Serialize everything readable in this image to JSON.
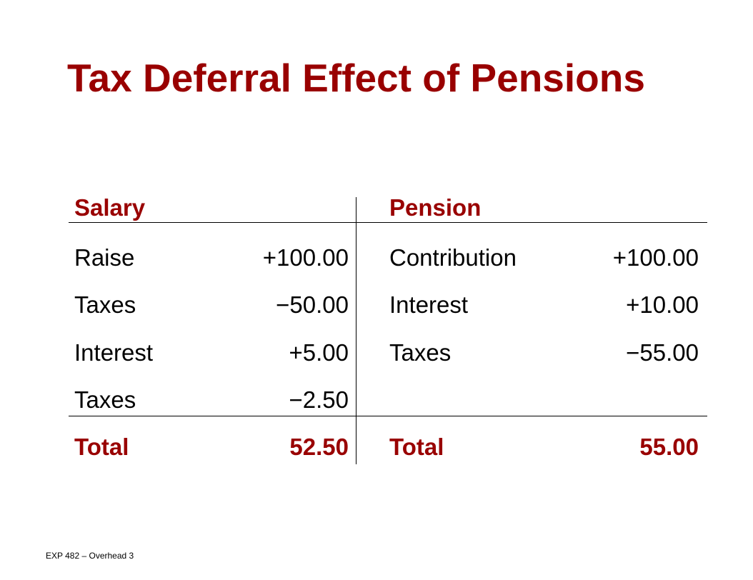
{
  "title": "Tax Deferral Effect of Pensions",
  "salary": {
    "header": "Salary",
    "rows": [
      {
        "label": "Raise",
        "value": "+100.00"
      },
      {
        "label": "Taxes",
        "value": "−50.00"
      },
      {
        "label": "Interest",
        "value": "+5.00"
      },
      {
        "label": "Taxes",
        "value": "−2.50"
      }
    ],
    "total": {
      "label": "Total",
      "value": "52.50"
    }
  },
  "pension": {
    "header": "Pension",
    "rows": [
      {
        "label": "Contribution",
        "value": "+100.00"
      },
      {
        "label": "Interest",
        "value": "+10.00"
      },
      {
        "label": "Taxes",
        "value": "−55.00"
      }
    ],
    "total": {
      "label": "Total",
      "value": "55.00"
    }
  },
  "footer": "EXP 482 – Overhead 3",
  "colors": {
    "accent": "#990000",
    "text": "#000000",
    "background": "#ffffff"
  }
}
